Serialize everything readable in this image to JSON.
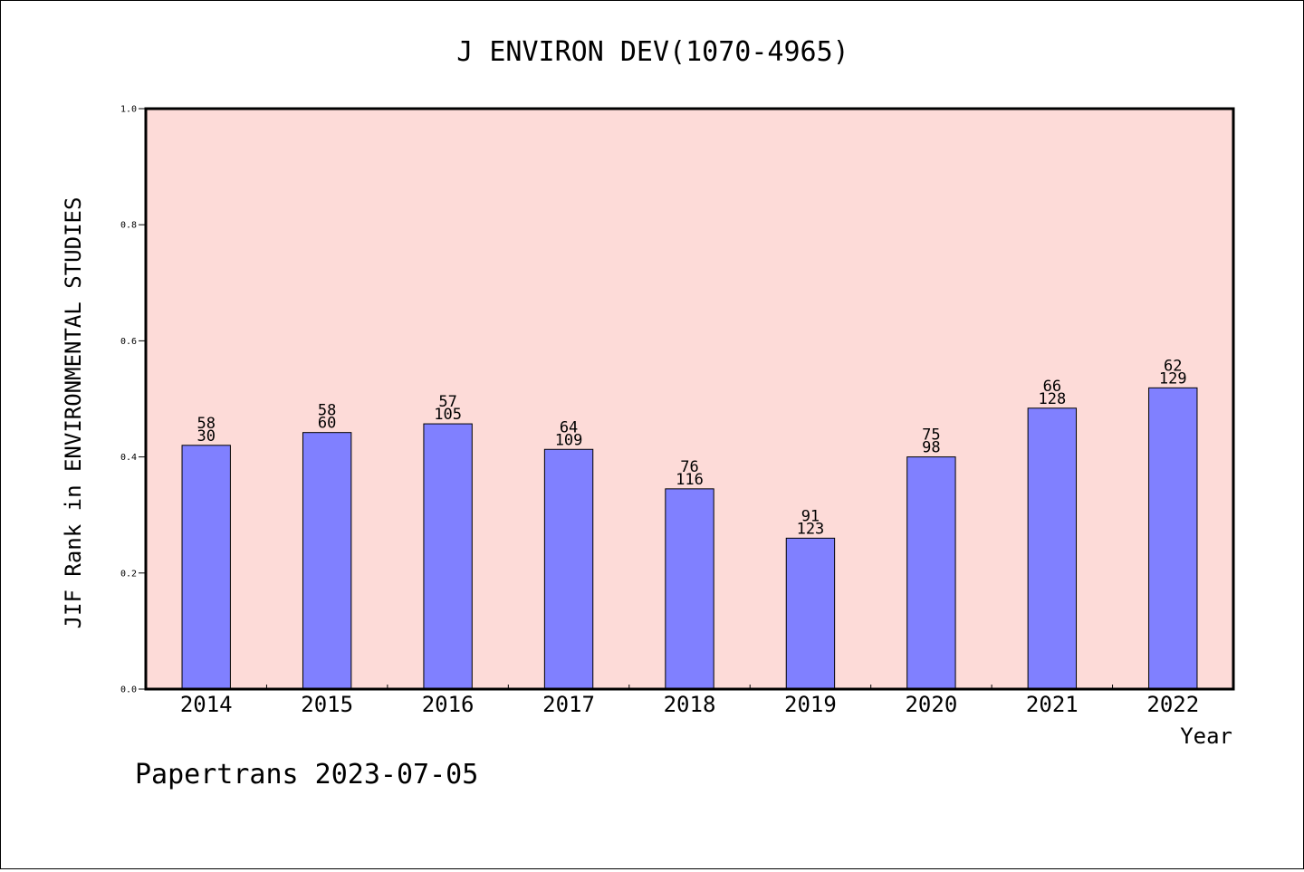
{
  "chart_data": {
    "type": "bar",
    "title": "J ENVIRON DEV(1070-4965)",
    "xlabel": "Year",
    "ylabel": "JIF Rank in ENVIRONMENTAL STUDIES",
    "categories": [
      "2014",
      "2015",
      "2016",
      "2017",
      "2018",
      "2019",
      "2020",
      "2021",
      "2022"
    ],
    "values": [
      0.42,
      0.442,
      0.457,
      0.413,
      0.345,
      0.26,
      0.4,
      0.484,
      0.519
    ],
    "rank_labels": [
      "58",
      "58",
      "57",
      "64",
      "76",
      "91",
      "75",
      "66",
      "62"
    ],
    "total_labels": [
      "30",
      "60",
      "105",
      "109",
      "116",
      "123",
      "98",
      "128",
      "129"
    ],
    "ylim": [
      0,
      1.0
    ],
    "yticks": [
      "0.0",
      "0.2",
      "0.4",
      "0.6",
      "0.8",
      "1.0"
    ],
    "grid": false,
    "colors": {
      "plot_background": "#fddbd8",
      "bar_fill": "#8080ff",
      "bar_edge": "#000000"
    }
  },
  "footer": "Papertrans 2023-07-05"
}
